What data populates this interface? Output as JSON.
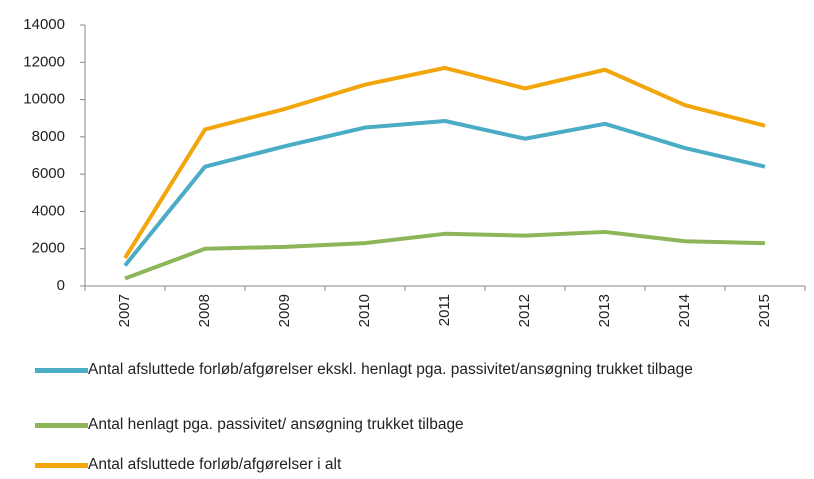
{
  "chart_data": {
    "type": "line",
    "categories": [
      "2007",
      "2008",
      "2009",
      "2010",
      "2011",
      "2012",
      "2013",
      "2014",
      "2015"
    ],
    "series": [
      {
        "name": "Antal afsluttede forløb/afgørelser ekskl. henlagt pga. passivitet/ansøgning trukket tilbage",
        "color": "#4bacc6",
        "values": [
          1100,
          6400,
          7500,
          8500,
          8850,
          7900,
          8700,
          7400,
          6400
        ]
      },
      {
        "name": "Antal henlagt pga. passivitet/ ansøgning trukket tilbage",
        "color": "#8db55a",
        "values": [
          400,
          2000,
          2100,
          2300,
          2800,
          2700,
          2900,
          2400,
          2300
        ]
      },
      {
        "name": "Antal afsluttede forløb/afgørelser i alt",
        "color": "#f2a60c",
        "values": [
          1500,
          8400,
          9500,
          10800,
          11700,
          10600,
          11600,
          9700,
          8600
        ]
      }
    ],
    "ylim": [
      0,
      14000
    ],
    "yticks": [
      0,
      2000,
      4000,
      6000,
      8000,
      10000,
      12000,
      14000
    ],
    "grid": false
  }
}
